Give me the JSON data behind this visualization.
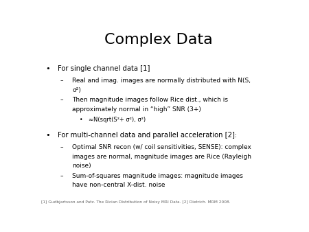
{
  "title": "Complex Data",
  "title_fontsize": 16,
  "title_font": "DejaVu Sans",
  "background_color": "#ffffff",
  "text_color": "#000000",
  "footnote": "[1] Gudbjartsson and Patz. The Rician Distribution of Noisy MRI Data. [2] Dietrich. MRM 2008.",
  "bullet1": "For single channel data [1]",
  "sub1a_line1": "Real and imag. images are normally distributed with N(S,",
  "sub1a_line2": "σ²)",
  "sub1b_line1": "Then magnitude images follow Rice dist., which is",
  "sub1b_line2": "approximately normal in “high” SNR (3+)",
  "subsub1": "≈N(sqrt(S²+ σ²), σ²)",
  "bullet2": "For multi-channel data and parallel acceleration [2]:",
  "sub2a_line1": "Optimal SNR recon (w/ coil sensitivities, SENSE): complex",
  "sub2a_line2": "images are normal, magnitude images are Rice (Rayleigh",
  "sub2a_line3": "noise)",
  "sub2b_line1": "Sum-of-squares magnitude images: magnitude images",
  "sub2b_line2": "have non-central X-dist. noise",
  "body_fs": 6.5,
  "bullet_fs": 7.2,
  "footnote_fs": 4.2
}
